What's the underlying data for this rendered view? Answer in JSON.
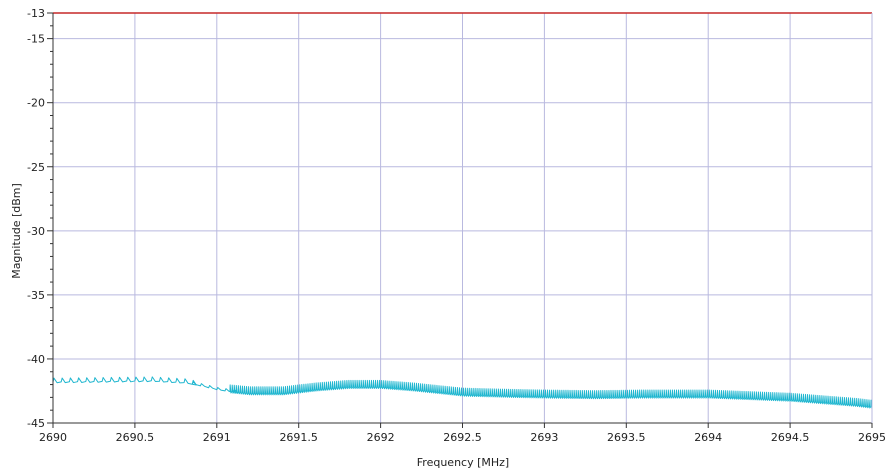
{
  "chart_data": {
    "type": "line",
    "xlabel": "Frequency [MHz]",
    "ylabel": "Magnitude [dBm]",
    "xlim": [
      2690,
      2695
    ],
    "ylim": [
      -45,
      -13
    ],
    "x_ticks": [
      2690,
      2690.5,
      2691,
      2691.5,
      2692,
      2692.5,
      2693,
      2693.5,
      2694,
      2694.5,
      2695
    ],
    "x_tick_labels": [
      "2690",
      "2690.5",
      "2691",
      "2691.5",
      "2692",
      "2692.5",
      "2693",
      "2693.5",
      "2694",
      "2694.5",
      "2695"
    ],
    "y_ticks": [
      -13,
      -15,
      -20,
      -25,
      -30,
      -35,
      -40,
      -45
    ],
    "y_tick_labels": [
      "-13",
      "-15",
      "-20",
      "-25",
      "-30",
      "-35",
      "-40",
      "-45"
    ],
    "y_minor_step": 1,
    "grid": true,
    "colors": {
      "trace": "#1fb6cf",
      "limit": "#c62828",
      "grid": "#b9b9df",
      "axis": "#333333"
    },
    "limit_line": {
      "y": -13
    },
    "series": [
      {
        "envelope": [
          [
            2690.0,
            -41.8
          ],
          [
            2690.3,
            -41.75
          ],
          [
            2690.6,
            -41.7
          ],
          [
            2690.8,
            -41.85
          ],
          [
            2690.9,
            -42.1
          ],
          [
            2691.0,
            -42.4
          ],
          [
            2691.08,
            -42.55
          ],
          [
            2691.2,
            -42.7
          ],
          [
            2691.4,
            -42.7
          ],
          [
            2691.6,
            -42.4
          ],
          [
            2691.8,
            -42.2
          ],
          [
            2692.0,
            -42.2
          ],
          [
            2692.2,
            -42.4
          ],
          [
            2692.35,
            -42.6
          ],
          [
            2692.5,
            -42.8
          ],
          [
            2692.8,
            -42.9
          ],
          [
            2693.0,
            -42.95
          ],
          [
            2693.3,
            -43.0
          ],
          [
            2693.6,
            -42.95
          ],
          [
            2694.0,
            -42.95
          ],
          [
            2694.2,
            -43.05
          ],
          [
            2694.5,
            -43.2
          ],
          [
            2694.7,
            -43.4
          ],
          [
            2694.9,
            -43.6
          ],
          [
            2695.0,
            -43.75
          ]
        ],
        "ripple_segments": [
          {
            "x_start": 2690.0,
            "x_end": 2690.85,
            "spacing": 0.05,
            "depth": 0.6
          },
          {
            "x_start": 2690.85,
            "x_end": 2691.08,
            "spacing": 0.05,
            "depth": 0.35
          },
          {
            "x_start": 2691.08,
            "x_end": 2695.0,
            "spacing": 0.0125,
            "depth": 1.05
          }
        ]
      }
    ]
  }
}
